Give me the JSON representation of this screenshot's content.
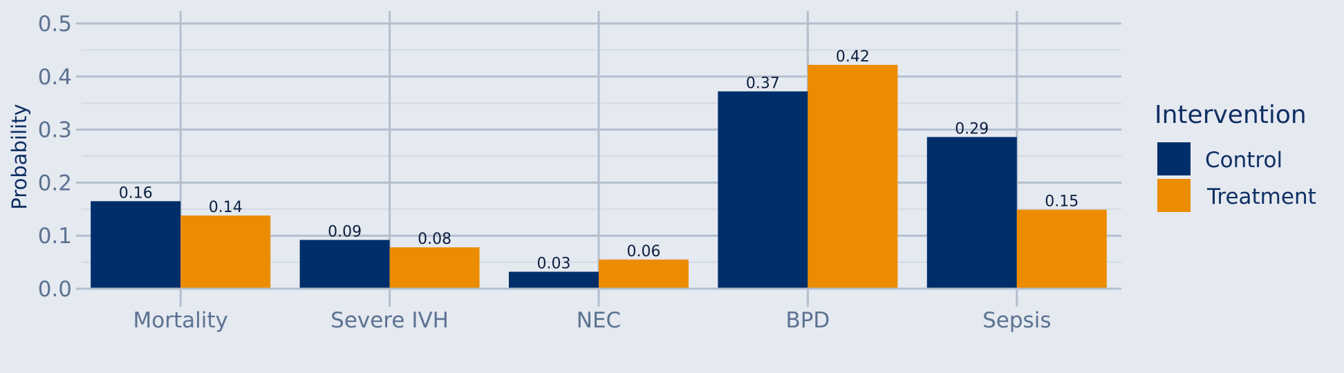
{
  "chart_data": {
    "type": "bar",
    "categories": [
      "Mortality",
      "Severe IVH",
      "NEC",
      "BPD",
      "Sepsis"
    ],
    "series": [
      {
        "name": "Control",
        "color": "#002e6b",
        "values": [
          0.165,
          0.092,
          0.032,
          0.372,
          0.286
        ],
        "labels": [
          "0.16",
          "0.09",
          "0.03",
          "0.37",
          "0.29"
        ]
      },
      {
        "name": "Treatment",
        "color": "#ec8c00",
        "values": [
          0.138,
          0.078,
          0.055,
          0.422,
          0.149
        ],
        "labels": [
          "0.14",
          "0.08",
          "0.06",
          "0.42",
          "0.15"
        ]
      }
    ],
    "ylabel": "Probability",
    "ylim": [
      0,
      0.5
    ],
    "yticks": [
      0,
      0.1,
      0.2,
      0.3,
      0.4,
      0.5
    ],
    "ytick_labels": [
      "0.0",
      "0.1",
      "0.2",
      "0.3",
      "0.4",
      "0.5"
    ],
    "legend_title": "Intervention",
    "legend_position": "right",
    "grid": true
  }
}
